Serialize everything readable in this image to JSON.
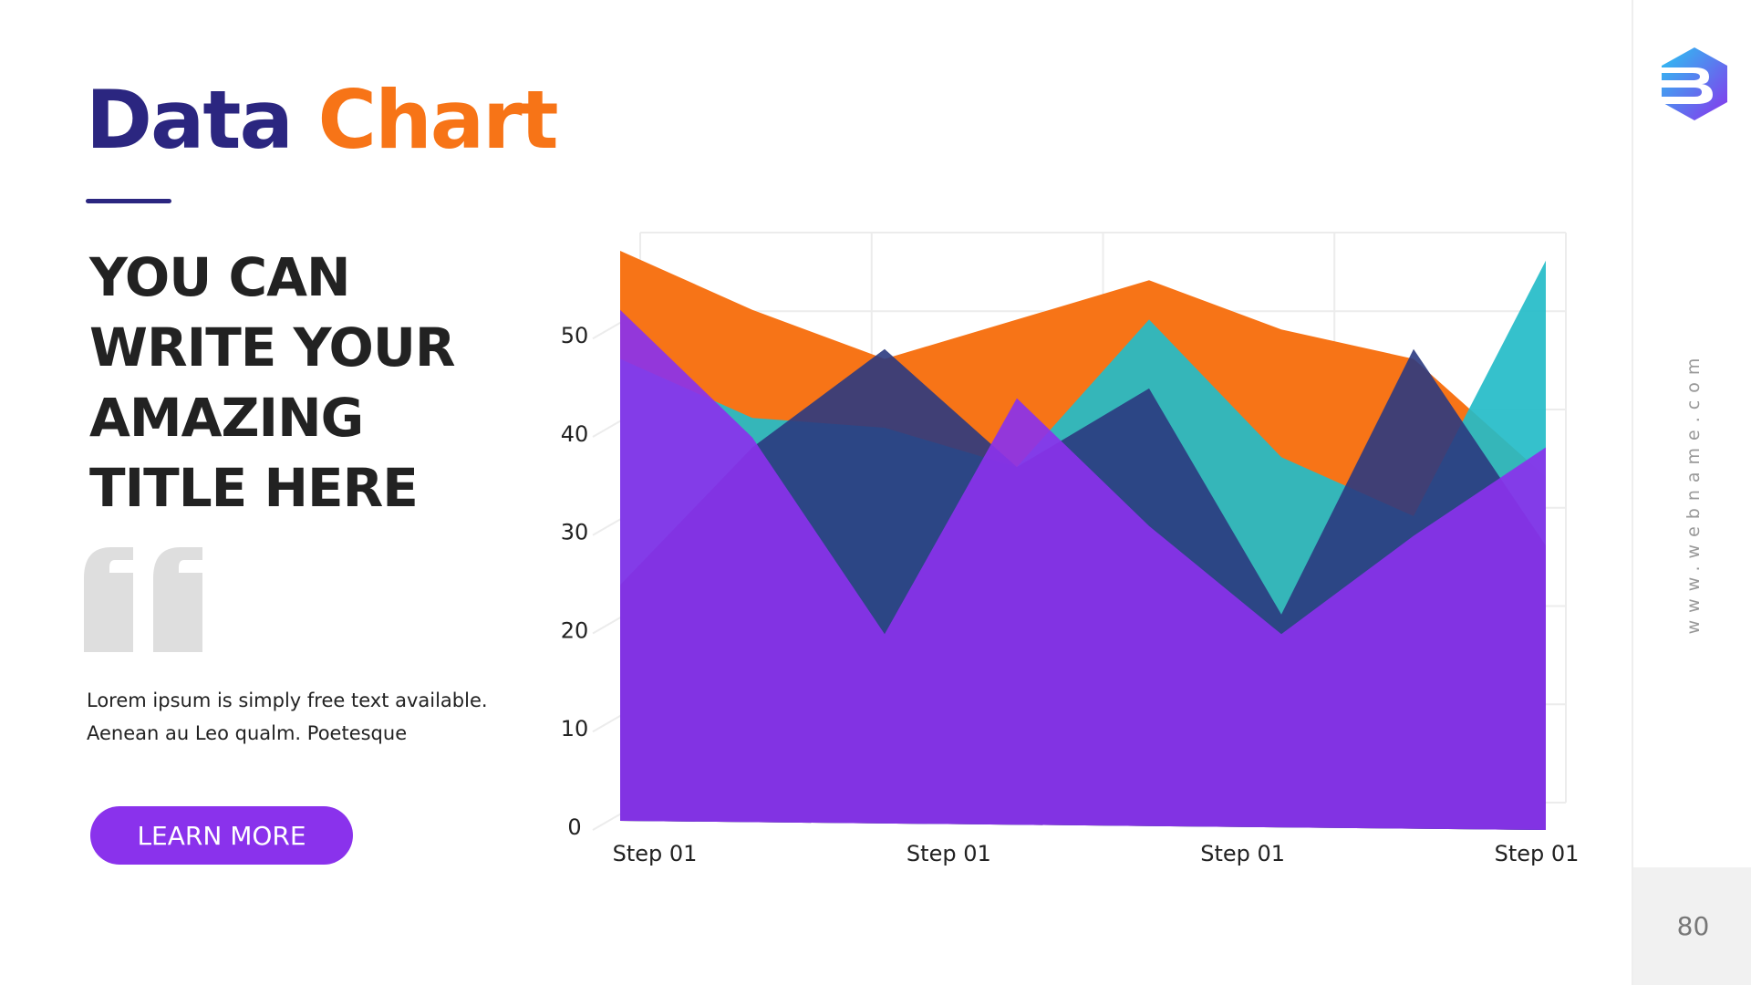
{
  "slide": {
    "title_word1": "Data",
    "title_word2": "Chart",
    "heading_lines": [
      "YOU CAN",
      "WRITE YOUR",
      "AMAZING",
      "TITLE HERE"
    ],
    "description_lines": [
      "Lorem ipsum is simply free text available.",
      "Aenean au Leo qualm. Poetesque"
    ],
    "button_label": "LEARN MORE",
    "website": "www.webname.com",
    "page_number": "80"
  },
  "colors": {
    "title_primary": "#2b2680",
    "title_accent": "#f77417",
    "button": "#8a32ec",
    "series": [
      "#f77417",
      "#24bcc8",
      "#2b3a80",
      "#8a32ec"
    ]
  },
  "icons": {
    "quote": "quote-icon",
    "logo": "logo-b-icon"
  },
  "chart_data": {
    "type": "area",
    "categories": [
      "Step 01",
      "Step 01",
      "Step 01",
      "Step 01"
    ],
    "x": [
      0,
      0.5,
      1,
      1.5,
      2,
      2.5,
      3,
      3.5
    ],
    "yticks": [
      0,
      10,
      20,
      30,
      40,
      50
    ],
    "ylim": [
      0,
      58
    ],
    "grid": true,
    "series": [
      {
        "values": [
          58,
          52,
          47,
          51,
          55,
          50,
          47,
          35
        ],
        "color": "#f77417",
        "opacity": 1.0
      },
      {
        "values": [
          47,
          41,
          40,
          36,
          51,
          37,
          31,
          57
        ],
        "color": "#24bcc8",
        "opacity": 0.92
      },
      {
        "values": [
          24,
          38,
          48,
          36,
          44,
          21,
          48,
          28
        ],
        "color": "#2b3a80",
        "opacity": 0.9
      },
      {
        "values": [
          52,
          39,
          19,
          43,
          30,
          19,
          29,
          38
        ],
        "color": "#8a32ec",
        "opacity": 0.92
      }
    ]
  }
}
